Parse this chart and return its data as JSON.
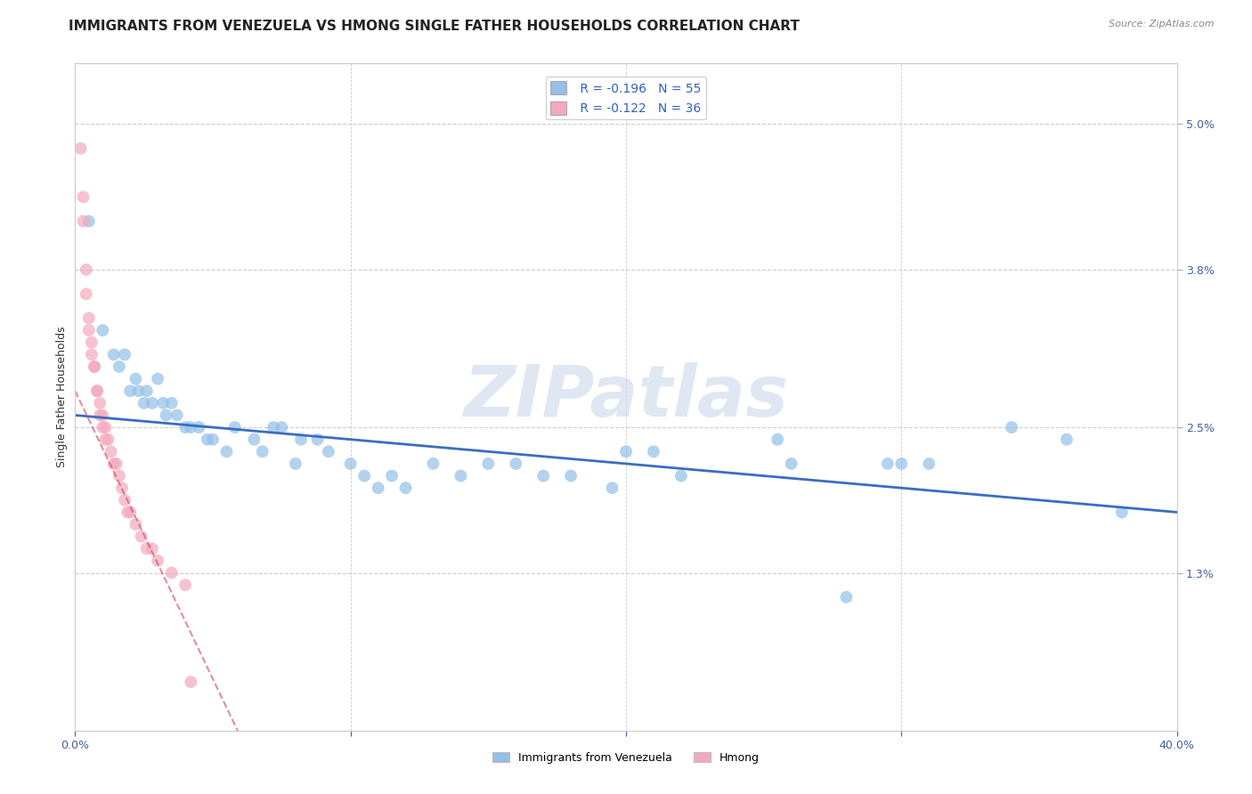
{
  "title": "IMMIGRANTS FROM VENEZUELA VS HMONG SINGLE FATHER HOUSEHOLDS CORRELATION CHART",
  "source_text": "Source: ZipAtlas.com",
  "ylabel": "Single Father Households",
  "xlim": [
    0.0,
    0.4
  ],
  "ylim": [
    0.0,
    0.055
  ],
  "xtick_positions": [
    0.0,
    0.1,
    0.2,
    0.3,
    0.4
  ],
  "xtick_labels": [
    "0.0%",
    "",
    "",
    "",
    "40.0%"
  ],
  "ytick_labels_right": [
    "5.0%",
    "3.8%",
    "2.5%",
    "1.3%"
  ],
  "ytick_positions_right": [
    0.05,
    0.038,
    0.025,
    0.013
  ],
  "background_color": "#ffffff",
  "grid_color": "#cccccc",
  "watermark_text": "ZIPatlas",
  "legend_R1": "R = -0.196",
  "legend_N1": "N = 55",
  "legend_R2": "R = -0.122",
  "legend_N2": "N = 36",
  "blue_color": "#92C0E8",
  "pink_color": "#F4A8BB",
  "blue_line_color": "#3B6CC4",
  "pink_line_color": "#D04060",
  "blue_scatter": [
    [
      0.005,
      0.042
    ],
    [
      0.01,
      0.033
    ],
    [
      0.014,
      0.031
    ],
    [
      0.016,
      0.03
    ],
    [
      0.018,
      0.031
    ],
    [
      0.02,
      0.028
    ],
    [
      0.022,
      0.029
    ],
    [
      0.023,
      0.028
    ],
    [
      0.025,
      0.027
    ],
    [
      0.026,
      0.028
    ],
    [
      0.028,
      0.027
    ],
    [
      0.03,
      0.029
    ],
    [
      0.032,
      0.027
    ],
    [
      0.033,
      0.026
    ],
    [
      0.035,
      0.027
    ],
    [
      0.037,
      0.026
    ],
    [
      0.04,
      0.025
    ],
    [
      0.042,
      0.025
    ],
    [
      0.045,
      0.025
    ],
    [
      0.048,
      0.024
    ],
    [
      0.05,
      0.024
    ],
    [
      0.055,
      0.023
    ],
    [
      0.058,
      0.025
    ],
    [
      0.065,
      0.024
    ],
    [
      0.068,
      0.023
    ],
    [
      0.072,
      0.025
    ],
    [
      0.075,
      0.025
    ],
    [
      0.08,
      0.022
    ],
    [
      0.082,
      0.024
    ],
    [
      0.088,
      0.024
    ],
    [
      0.092,
      0.023
    ],
    [
      0.1,
      0.022
    ],
    [
      0.105,
      0.021
    ],
    [
      0.11,
      0.02
    ],
    [
      0.115,
      0.021
    ],
    [
      0.12,
      0.02
    ],
    [
      0.13,
      0.022
    ],
    [
      0.14,
      0.021
    ],
    [
      0.15,
      0.022
    ],
    [
      0.16,
      0.022
    ],
    [
      0.17,
      0.021
    ],
    [
      0.18,
      0.021
    ],
    [
      0.195,
      0.02
    ],
    [
      0.2,
      0.023
    ],
    [
      0.21,
      0.023
    ],
    [
      0.22,
      0.021
    ],
    [
      0.255,
      0.024
    ],
    [
      0.26,
      0.022
    ],
    [
      0.28,
      0.011
    ],
    [
      0.295,
      0.022
    ],
    [
      0.3,
      0.022
    ],
    [
      0.31,
      0.022
    ],
    [
      0.34,
      0.025
    ],
    [
      0.36,
      0.024
    ],
    [
      0.38,
      0.018
    ]
  ],
  "pink_scatter": [
    [
      0.002,
      0.048
    ],
    [
      0.003,
      0.044
    ],
    [
      0.003,
      0.042
    ],
    [
      0.004,
      0.038
    ],
    [
      0.004,
      0.036
    ],
    [
      0.005,
      0.034
    ],
    [
      0.005,
      0.033
    ],
    [
      0.006,
      0.031
    ],
    [
      0.006,
      0.032
    ],
    [
      0.007,
      0.03
    ],
    [
      0.007,
      0.03
    ],
    [
      0.008,
      0.028
    ],
    [
      0.008,
      0.028
    ],
    [
      0.009,
      0.027
    ],
    [
      0.009,
      0.026
    ],
    [
      0.01,
      0.026
    ],
    [
      0.01,
      0.025
    ],
    [
      0.011,
      0.025
    ],
    [
      0.011,
      0.024
    ],
    [
      0.012,
      0.024
    ],
    [
      0.013,
      0.023
    ],
    [
      0.014,
      0.022
    ],
    [
      0.015,
      0.022
    ],
    [
      0.016,
      0.021
    ],
    [
      0.017,
      0.02
    ],
    [
      0.018,
      0.019
    ],
    [
      0.019,
      0.018
    ],
    [
      0.02,
      0.018
    ],
    [
      0.022,
      0.017
    ],
    [
      0.024,
      0.016
    ],
    [
      0.026,
      0.015
    ],
    [
      0.028,
      0.015
    ],
    [
      0.03,
      0.014
    ],
    [
      0.035,
      0.013
    ],
    [
      0.04,
      0.012
    ],
    [
      0.042,
      0.004
    ]
  ],
  "title_fontsize": 11,
  "axis_fontsize": 9,
  "tick_fontsize": 9
}
